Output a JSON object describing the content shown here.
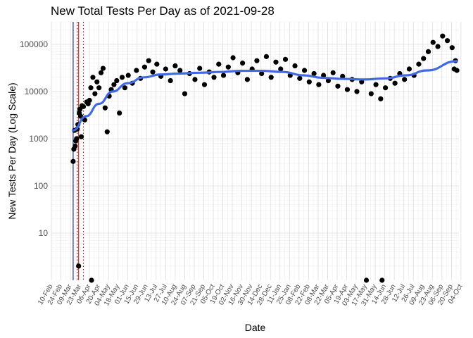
{
  "chart_data": {
    "type": "scatter",
    "title": "New Total Tests Per Day as of 2021-09-28",
    "xlabel": "Date",
    "ylabel": "New Tests Per Day (Log Scale)",
    "y_scale": "log10",
    "ylim": [
      1,
      300000
    ],
    "yticks": [
      10,
      100,
      1000,
      10000,
      100000
    ],
    "ytick_labels": [
      "10",
      "100",
      "1000",
      "10000",
      "100000"
    ],
    "xlim": [
      "2020-02-10",
      "2021-10-01"
    ],
    "xtick_labels": [
      "10-Feb",
      "24-Feb",
      "09-Mar",
      "23-Mar",
      "06-Apr",
      "20-Apr",
      "04-May",
      "18-May",
      "01-Jun",
      "15-Jun",
      "29-Jun",
      "13-Jul",
      "27-Jul",
      "10-Aug",
      "24-Aug",
      "07-Sep",
      "21-Sep",
      "05-Oct",
      "19-Oct",
      "02-Nov",
      "16-Nov",
      "30-Nov",
      "14-Dec",
      "28-Dec",
      "11-Jan",
      "25-Jan",
      "08-Feb",
      "22-Feb",
      "08-Mar",
      "22-Mar",
      "05-Apr",
      "19-Apr",
      "03-May",
      "17-May",
      "31-May",
      "14-Jun",
      "28-Jun",
      "12-Jul",
      "26-Jul",
      "09-Aug",
      "23-Aug",
      "06-Sep",
      "20-Sep",
      "04-Oct"
    ],
    "grid": true,
    "vertical_lines": [
      {
        "date": "2020-03-13",
        "color": "#00008b",
        "style": "solid"
      },
      {
        "date": "2020-03-19",
        "color": "#000000",
        "style": "dotted"
      },
      {
        "date": "2020-03-21",
        "color": "#ff0000",
        "style": "solid"
      },
      {
        "date": "2020-03-28",
        "color": "#8b0000",
        "style": "dotted"
      }
    ],
    "points_color": "#000000",
    "smooth_color": "#4169e1",
    "smooth": {
      "dates": [
        "2020-03-13",
        "2020-04-01",
        "2020-04-20",
        "2020-05-10",
        "2020-06-01",
        "2020-06-25",
        "2020-07-20",
        "2020-08-15",
        "2020-09-15",
        "2020-10-15",
        "2020-11-15",
        "2020-12-15",
        "2021-01-15",
        "2021-02-15",
        "2021-03-15",
        "2021-04-15",
        "2021-05-15",
        "2021-06-15",
        "2021-07-15",
        "2021-08-15",
        "2021-09-28"
      ],
      "values": [
        1500,
        3000,
        5500,
        10000,
        15000,
        20000,
        23000,
        24000,
        25000,
        26000,
        27500,
        27500,
        26000,
        22000,
        19500,
        18500,
        18000,
        19000,
        22000,
        28000,
        44000
      ]
    },
    "points": [
      {
        "x": "2020-03-13",
        "y": 330
      },
      {
        "x": "2020-03-14",
        "y": 600
      },
      {
        "x": "2020-03-15",
        "y": 1500
      },
      {
        "x": "2020-03-16",
        "y": 700
      },
      {
        "x": "2020-03-17",
        "y": 900
      },
      {
        "x": "2020-03-18",
        "y": 1000
      },
      {
        "x": "2020-03-19",
        "y": 1600
      },
      {
        "x": "2020-03-20",
        "y": 2000
      },
      {
        "x": "2020-03-21",
        "y": 2
      },
      {
        "x": "2020-03-22",
        "y": 3500
      },
      {
        "x": "2020-03-23",
        "y": 4200
      },
      {
        "x": "2020-03-24",
        "y": 3000
      },
      {
        "x": "2020-03-25",
        "y": 1100
      },
      {
        "x": "2020-03-26",
        "y": 5000
      },
      {
        "x": "2020-03-28",
        "y": 4800
      },
      {
        "x": "2020-03-30",
        "y": 2500
      },
      {
        "x": "2020-04-02",
        "y": 6000
      },
      {
        "x": "2020-04-04",
        "y": 5500
      },
      {
        "x": "2020-04-06",
        "y": 6500
      },
      {
        "x": "2020-04-08",
        "y": 12000
      },
      {
        "x": "2020-04-09",
        "y": 1
      },
      {
        "x": "2020-04-11",
        "y": 20000
      },
      {
        "x": "2020-04-14",
        "y": 9000
      },
      {
        "x": "2020-04-17",
        "y": 16000
      },
      {
        "x": "2020-04-20",
        "y": 12000
      },
      {
        "x": "2020-04-23",
        "y": 25000
      },
      {
        "x": "2020-04-26",
        "y": 31000
      },
      {
        "x": "2020-04-29",
        "y": 4500
      },
      {
        "x": "2020-05-02",
        "y": 1400
      },
      {
        "x": "2020-05-05",
        "y": 8000
      },
      {
        "x": "2020-05-08",
        "y": 11000
      },
      {
        "x": "2020-05-12",
        "y": 14000
      },
      {
        "x": "2020-05-16",
        "y": 17000
      },
      {
        "x": "2020-05-20",
        "y": 3500
      },
      {
        "x": "2020-05-24",
        "y": 20000
      },
      {
        "x": "2020-05-28",
        "y": 12000
      },
      {
        "x": "2020-06-02",
        "y": 22000
      },
      {
        "x": "2020-06-08",
        "y": 15000
      },
      {
        "x": "2020-06-14",
        "y": 28000
      },
      {
        "x": "2020-06-20",
        "y": 19000
      },
      {
        "x": "2020-06-26",
        "y": 33000
      },
      {
        "x": "2020-07-02",
        "y": 45000
      },
      {
        "x": "2020-07-08",
        "y": 26000
      },
      {
        "x": "2020-07-14",
        "y": 38000
      },
      {
        "x": "2020-07-20",
        "y": 21000
      },
      {
        "x": "2020-07-27",
        "y": 30000
      },
      {
        "x": "2020-08-03",
        "y": 17000
      },
      {
        "x": "2020-08-10",
        "y": 35000
      },
      {
        "x": "2020-08-17",
        "y": 28000
      },
      {
        "x": "2020-08-24",
        "y": 9000
      },
      {
        "x": "2020-08-31",
        "y": 24000
      },
      {
        "x": "2020-09-08",
        "y": 18000
      },
      {
        "x": "2020-09-15",
        "y": 31000
      },
      {
        "x": "2020-09-22",
        "y": 14000
      },
      {
        "x": "2020-09-29",
        "y": 26000
      },
      {
        "x": "2020-10-06",
        "y": 20000
      },
      {
        "x": "2020-10-13",
        "y": 38000
      },
      {
        "x": "2020-10-20",
        "y": 22000
      },
      {
        "x": "2020-10-27",
        "y": 33000
      },
      {
        "x": "2020-11-03",
        "y": 52000
      },
      {
        "x": "2020-11-10",
        "y": 25000
      },
      {
        "x": "2020-11-17",
        "y": 40000
      },
      {
        "x": "2020-11-24",
        "y": 18000
      },
      {
        "x": "2020-12-01",
        "y": 30000
      },
      {
        "x": "2020-12-08",
        "y": 45000
      },
      {
        "x": "2020-12-15",
        "y": 24000
      },
      {
        "x": "2020-12-22",
        "y": 55000
      },
      {
        "x": "2020-12-29",
        "y": 20000
      },
      {
        "x": "2021-01-05",
        "y": 42000
      },
      {
        "x": "2021-01-12",
        "y": 30000
      },
      {
        "x": "2021-01-19",
        "y": 48000
      },
      {
        "x": "2021-01-26",
        "y": 22000
      },
      {
        "x": "2021-02-02",
        "y": 35000
      },
      {
        "x": "2021-02-09",
        "y": 19000
      },
      {
        "x": "2021-02-16",
        "y": 28000
      },
      {
        "x": "2021-02-23",
        "y": 16000
      },
      {
        "x": "2021-03-02",
        "y": 24000
      },
      {
        "x": "2021-03-09",
        "y": 14000
      },
      {
        "x": "2021-03-16",
        "y": 22000
      },
      {
        "x": "2021-03-23",
        "y": 17000
      },
      {
        "x": "2021-03-30",
        "y": 25000
      },
      {
        "x": "2021-04-06",
        "y": 13000
      },
      {
        "x": "2021-04-13",
        "y": 21000
      },
      {
        "x": "2021-04-20",
        "y": 11000
      },
      {
        "x": "2021-04-27",
        "y": 18000
      },
      {
        "x": "2021-05-04",
        "y": 10000
      },
      {
        "x": "2021-05-11",
        "y": 16000
      },
      {
        "x": "2021-05-18",
        "y": 1
      },
      {
        "x": "2021-05-25",
        "y": 9000
      },
      {
        "x": "2021-06-01",
        "y": 14000
      },
      {
        "x": "2021-06-08",
        "y": 7000
      },
      {
        "x": "2021-06-10",
        "y": 1
      },
      {
        "x": "2021-06-15",
        "y": 12000
      },
      {
        "x": "2021-06-22",
        "y": 19000
      },
      {
        "x": "2021-06-29",
        "y": 15000
      },
      {
        "x": "2021-07-06",
        "y": 24000
      },
      {
        "x": "2021-07-13",
        "y": 18000
      },
      {
        "x": "2021-07-20",
        "y": 30000
      },
      {
        "x": "2021-07-27",
        "y": 22000
      },
      {
        "x": "2021-08-03",
        "y": 38000
      },
      {
        "x": "2021-08-10",
        "y": 50000
      },
      {
        "x": "2021-08-17",
        "y": 70000
      },
      {
        "x": "2021-08-24",
        "y": 110000
      },
      {
        "x": "2021-08-31",
        "y": 90000
      },
      {
        "x": "2021-09-07",
        "y": 150000
      },
      {
        "x": "2021-09-14",
        "y": 120000
      },
      {
        "x": "2021-09-21",
        "y": 85000
      },
      {
        "x": "2021-09-24",
        "y": 30000
      },
      {
        "x": "2021-09-26",
        "y": 45000
      },
      {
        "x": "2021-09-28",
        "y": 28000
      }
    ]
  }
}
